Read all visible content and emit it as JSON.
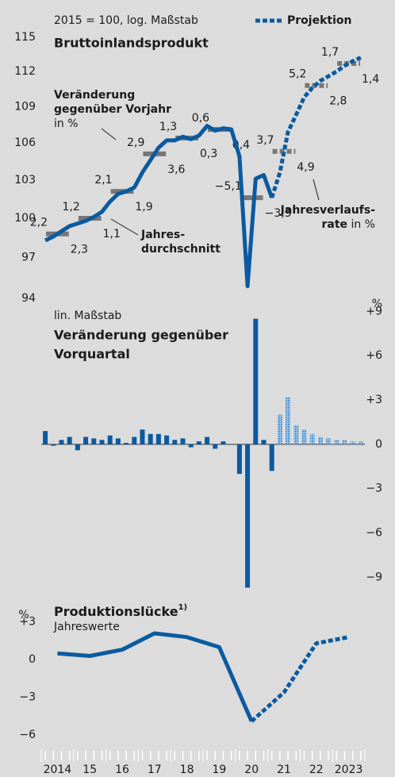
{
  "chart_data": [
    {
      "type": "line",
      "log_scale": true,
      "subtitle": "2015 = 100, log. Maßstab",
      "title": "Bruttoinlandsprodukt",
      "ylim": [
        94,
        115
      ],
      "yticks": [
        94,
        97,
        100,
        103,
        106,
        109,
        112,
        115
      ],
      "axis_side": "left",
      "categories": [
        null,
        null,
        null,
        null,
        null,
        null,
        null,
        null,
        null,
        null,
        null,
        null,
        null,
        null,
        null,
        null,
        null,
        null,
        null,
        null,
        null,
        null,
        null,
        null,
        null,
        null,
        null,
        null,
        null,
        null,
        null,
        null,
        null,
        null,
        null,
        null,
        null,
        null,
        null,
        null
      ],
      "series": [
        {
          "color": "#0a5aa0",
          "dashed": false,
          "values": [
            98.3,
            98.6,
            99.0,
            99.4,
            99.6,
            99.8,
            100.1,
            100.5,
            101.3,
            101.9,
            102.1,
            102.4,
            103.6,
            104.6,
            105.6,
            106.2,
            106.2,
            106.5,
            106.3,
            106.6,
            107.4,
            107.0,
            107.2,
            107.1,
            104.9,
            94.9,
            103.1,
            103.4,
            101.6,
            null,
            null,
            null,
            null,
            null,
            null,
            null,
            null,
            null,
            null,
            null
          ]
        },
        {
          "name": "Projektion",
          "color": "#0a5aa0",
          "dashed": true,
          "values": [
            null,
            null,
            null,
            null,
            null,
            null,
            null,
            null,
            null,
            null,
            null,
            null,
            null,
            null,
            null,
            null,
            null,
            null,
            null,
            null,
            null,
            null,
            null,
            null,
            null,
            null,
            null,
            null,
            101.6,
            103.6,
            106.9,
            108.3,
            109.8,
            110.6,
            111.2,
            111.6,
            112.0,
            112.5,
            112.9,
            113.2
          ]
        }
      ],
      "annual": [
        {
          "color": "#777777",
          "dashed": false,
          "values": [
            98.8,
            100.0,
            102.1,
            105.1,
            106.4,
            107.1,
            101.6,
            null,
            null,
            null
          ]
        },
        {
          "color": "#777777",
          "dashed": true,
          "values": [
            null,
            null,
            null,
            null,
            null,
            null,
            null,
            105.3,
            110.8,
            112.7
          ]
        }
      ],
      "annual_change": {
        "color": "#1a1a1a",
        "values": [
          2.2,
          1.2,
          2.1,
          2.9,
          1.3,
          0.6,
          -5.1,
          3.7,
          5.2,
          1.7
        ],
        "value_labels": [
          "2,2",
          "1,2",
          "2,1",
          "2,9",
          "1,3",
          "0,6",
          "−5,1",
          "3,7",
          "5,2",
          "1,7"
        ]
      },
      "q4_change": {
        "color": "#2a7fc4",
        "values": [
          2.3,
          1.1,
          1.9,
          3.6,
          0.3,
          0.4,
          -3.3,
          4.9,
          2.8,
          1.4
        ],
        "value_labels": [
          "2,3",
          "1,1",
          "1,9",
          "3,6",
          "0,3",
          "0,4",
          "−3,3",
          "4,9",
          "2,8",
          "1,4"
        ]
      },
      "annotations": {
        "annual_change": [
          "Veränderung",
          "gegenüber Vorjahr",
          "in %"
        ],
        "annual_average": [
          "Jahres-",
          "durchschnitt"
        ],
        "q4_change": [
          "Jahresverlaufs-",
          "rate",
          " in %"
        ]
      }
    },
    {
      "type": "bar",
      "subtitle": "lin. Maßstab",
      "title": [
        "Veränderung gegenüber",
        "Vorquartal"
      ],
      "unit": "%",
      "ylim": [
        -10,
        9.5
      ],
      "axis_side": "right",
      "zero_line": true,
      "yticks": [
        {
          "value": 9,
          "label": "+9"
        },
        {
          "value": 6,
          "label": "+6"
        },
        {
          "value": 3,
          "label": "+3"
        },
        0,
        {
          "value": -3,
          "label": "−3"
        },
        {
          "value": -6,
          "label": "−6"
        },
        {
          "value": -9,
          "label": "−9"
        }
      ],
      "categories": [
        null,
        null,
        null,
        null,
        null,
        null,
        null,
        null,
        null,
        null,
        null,
        null,
        null,
        null,
        null,
        null,
        null,
        null,
        null,
        null,
        null,
        null,
        null,
        null,
        null,
        null,
        null,
        null,
        null,
        null,
        null,
        null,
        null,
        null,
        null,
        null,
        null,
        null,
        null,
        null
      ],
      "series": [
        {
          "color": "#0a5aa0",
          "dotted": false,
          "values": [
            0.9,
            -0.1,
            0.3,
            0.5,
            -0.4,
            0.5,
            0.4,
            0.3,
            0.6,
            0.4,
            0.1,
            0.5,
            1.0,
            0.7,
            0.7,
            0.6,
            0.3,
            0.4,
            -0.2,
            0.2,
            0.5,
            -0.3,
            0.2,
            0,
            -2.0,
            -9.7,
            8.5,
            0.3,
            -1.8,
            null,
            null,
            null,
            null,
            null,
            null,
            null,
            null,
            null,
            null,
            null
          ]
        },
        {
          "color": "#2a7fc4",
          "dotted": true,
          "values": [
            null,
            null,
            null,
            null,
            null,
            null,
            null,
            null,
            null,
            null,
            null,
            null,
            null,
            null,
            null,
            null,
            null,
            null,
            null,
            null,
            null,
            null,
            null,
            null,
            null,
            null,
            null,
            null,
            null,
            2.0,
            3.2,
            1.3,
            1.0,
            0.7,
            0.5,
            0.4,
            0.3,
            0.3,
            0.2,
            0.2
          ]
        }
      ]
    },
    {
      "type": "line",
      "title": "Produktionslücke",
      "title_note": "1)",
      "subtitle": "Jahreswerte",
      "unit": "%",
      "ylim": [
        -7,
        4.5
      ],
      "axis_side": "left",
      "yticks": [
        {
          "value": 3,
          "label": "+3"
        },
        0,
        {
          "value": -3,
          "label": "−3"
        },
        {
          "value": -6,
          "label": "−6"
        }
      ],
      "categories": [
        "2014",
        "15",
        "16",
        "17",
        "18",
        "19",
        "20",
        "21",
        "22",
        "2023"
      ],
      "series": [
        {
          "color": "#0a5aa0",
          "dashed": false,
          "values": [
            0.5,
            0.3,
            0.8,
            2.1,
            1.8,
            1.0,
            -4.9,
            null,
            null,
            null
          ]
        },
        {
          "color": "#0a5aa0",
          "dashed": true,
          "values": [
            null,
            null,
            null,
            null,
            null,
            null,
            -4.9,
            -2.6,
            1.3,
            1.8
          ]
        }
      ]
    }
  ]
}
